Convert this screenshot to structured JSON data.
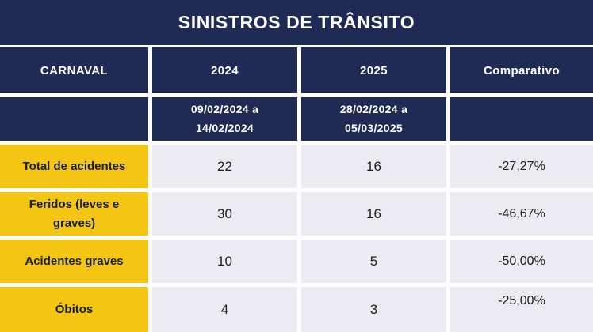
{
  "title": "SINISTROS DE TRÂNSITO",
  "colors": {
    "navy": "#1F2A55",
    "yellow": "#F5C513",
    "cell_gray": "#ECEBF2",
    "gap_white": "#FFFFFF",
    "header_text": "#FFFFFF",
    "label_text": "#15203F",
    "value_text": "#1F1F1F"
  },
  "header": {
    "carnaval": "CARNAVAL",
    "y2024": "2024",
    "y2025": "2025",
    "comparativo": "Comparativo"
  },
  "periods": {
    "p2024": {
      "line1": "09/02/2024 a",
      "line2": "14/02/2024",
      "full": "09/02/2024 a 14/02/2024"
    },
    "p2025": {
      "line1": "28/02/2024 a",
      "line2": "05/03/2025",
      "full": "28/02/2024 a 05/03/2025"
    }
  },
  "chart_data": {
    "type": "table",
    "title": "SINISTROS DE TRÂNSITO",
    "columns": [
      "CARNAVAL",
      "2024",
      "2025",
      "Comparativo"
    ],
    "column_periods": {
      "2024": "09/02/2024 a 14/02/2024",
      "2025": "28/02/2024 a 05/03/2025"
    },
    "rows": [
      {
        "label": "Total de acidentes",
        "2024": "22",
        "2025": "16",
        "comparativo": "-27,27%"
      },
      {
        "label": "Feridos (leves e graves)",
        "2024": "30",
        "2025": "16",
        "comparativo": "-46,67%"
      },
      {
        "label": "Acidentes graves",
        "2024": "10",
        "2025": "5",
        "comparativo": "-50,00%"
      },
      {
        "label": "Óbitos",
        "2024": "4",
        "2025": "3",
        "comparativo": "-25,00%"
      }
    ]
  }
}
